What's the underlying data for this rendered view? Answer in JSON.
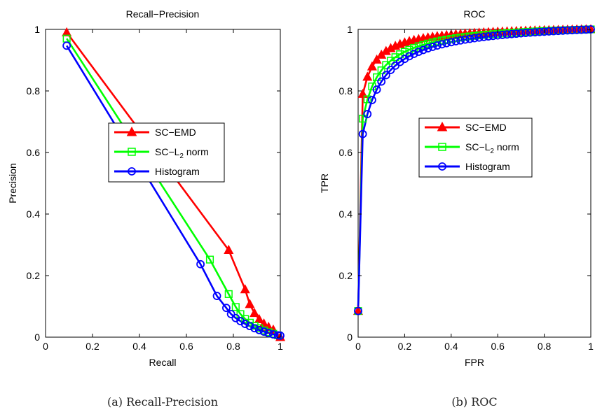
{
  "figure": {
    "captions": [
      "(a) Recall-Precision",
      "(b) ROC"
    ]
  },
  "chart_data": [
    {
      "type": "line",
      "title": "Recall−Precision",
      "xlabel": "Recall",
      "ylabel": "Precision",
      "xlim": [
        0,
        1
      ],
      "ylim": [
        0,
        1
      ],
      "xticks": [
        0,
        0.2,
        0.4,
        0.6,
        0.8,
        1
      ],
      "yticks": [
        0,
        0.2,
        0.4,
        0.6,
        0.8,
        1
      ],
      "xtick_labels": [
        "0",
        "0.2",
        "0.4",
        "0.6",
        "0.8",
        "1"
      ],
      "ytick_labels": [
        "0",
        "0.2",
        "0.4",
        "0.6",
        "0.8",
        "1"
      ],
      "grid": false,
      "legend_position": "center",
      "series": [
        {
          "name": "SC−EMD",
          "color": "#ff0000",
          "marker": "triangle",
          "points": [
            [
              0.09,
              0.99
            ],
            [
              0.78,
              0.283
            ],
            [
              0.85,
              0.155
            ],
            [
              0.87,
              0.107
            ],
            [
              0.89,
              0.078
            ],
            [
              0.91,
              0.058
            ],
            [
              0.93,
              0.044
            ],
            [
              0.95,
              0.033
            ],
            [
              0.97,
              0.024
            ],
            [
              1.0,
              0.0
            ]
          ]
        },
        {
          "name": "SC−L2 norm",
          "color": "#00ff00",
          "marker": "square",
          "points": [
            [
              0.09,
              0.97
            ],
            [
              0.7,
              0.252
            ],
            [
              0.78,
              0.14
            ],
            [
              0.81,
              0.098
            ],
            [
              0.83,
              0.075
            ],
            [
              0.85,
              0.059
            ],
            [
              0.87,
              0.047
            ],
            [
              0.89,
              0.037
            ],
            [
              0.91,
              0.029
            ],
            [
              0.93,
              0.022
            ],
            [
              0.95,
              0.016
            ],
            [
              0.97,
              0.011
            ],
            [
              0.99,
              0.006
            ]
          ]
        },
        {
          "name": "Histogram",
          "color": "#0000ff",
          "marker": "circle",
          "points": [
            [
              0.09,
              0.947
            ],
            [
              0.66,
              0.237
            ],
            [
              0.73,
              0.134
            ],
            [
              0.77,
              0.095
            ],
            [
              0.79,
              0.075
            ],
            [
              0.81,
              0.062
            ],
            [
              0.83,
              0.052
            ],
            [
              0.85,
              0.043
            ],
            [
              0.87,
              0.036
            ],
            [
              0.89,
              0.029
            ],
            [
              0.91,
              0.023
            ],
            [
              0.93,
              0.018
            ],
            [
              0.95,
              0.013
            ],
            [
              0.97,
              0.009
            ],
            [
              0.99,
              0.006
            ],
            [
              1.0,
              0.005
            ]
          ]
        }
      ]
    },
    {
      "type": "line",
      "title": "ROC",
      "xlabel": "FPR",
      "ylabel": "TPR",
      "xlim": [
        0,
        1
      ],
      "ylim": [
        0,
        1
      ],
      "xticks": [
        0,
        0.2,
        0.4,
        0.6,
        0.8,
        1
      ],
      "yticks": [
        0,
        0.2,
        0.4,
        0.6,
        0.8,
        1
      ],
      "xtick_labels": [
        "0",
        "0.2",
        "0.4",
        "0.6",
        "0.8",
        "1"
      ],
      "ytick_labels": [
        "0",
        "0.2",
        "0.4",
        "0.6",
        "0.8",
        "1"
      ],
      "grid": false,
      "legend_position": "center",
      "roc_model": {
        "x_start": 0.0,
        "x_end": 1.0,
        "step": 0.02,
        "initial_point": [
          0,
          0.085
        ]
      },
      "series": [
        {
          "name": "SC−EMD",
          "color": "#ff0000",
          "marker": "triangle",
          "y_at_first_step": 0.79,
          "curve_k": 0.06
        },
        {
          "name": "SC−L2 norm",
          "color": "#00ff00",
          "marker": "square",
          "y_at_first_step": 0.71,
          "curve_k": 0.08
        },
        {
          "name": "Histogram",
          "color": "#0000ff",
          "marker": "circle",
          "y_at_first_step": 0.66,
          "curve_k": 0.095
        }
      ]
    }
  ]
}
